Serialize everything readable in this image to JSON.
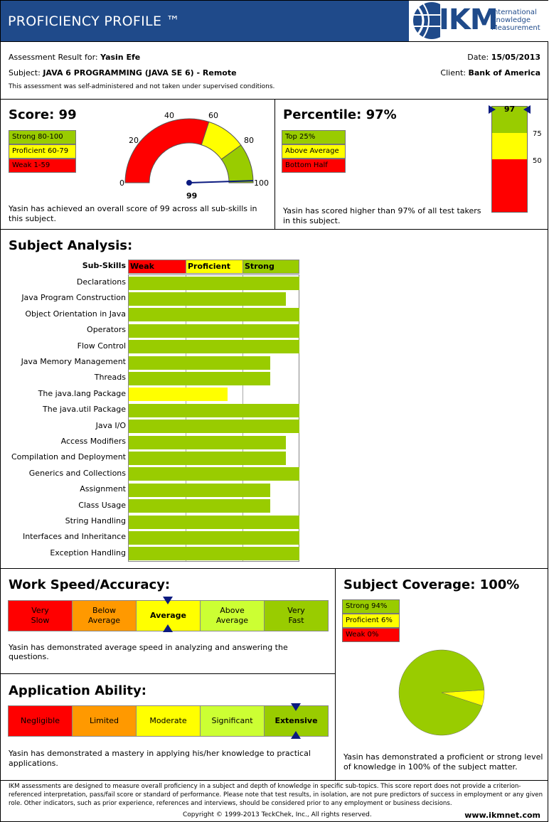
{
  "header": {
    "title": "PROFICIENCY PROFILE ™",
    "logo_text": "IKM",
    "logo_sub1": "International",
    "logo_sub2": "Knowledge",
    "logo_sub3": "Measurement"
  },
  "info": {
    "result_label": "Assessment Result for:",
    "candidate": "Yasin Efe",
    "subject_label": "Subject:",
    "subject": "JAVA 6 PROGRAMMING (JAVA SE 6) - Remote",
    "date_label": "Date:",
    "date": "15/05/2013",
    "client_label": "Client:",
    "client": "Bank of America",
    "note": "This assessment was self-administered and not taken under supervised conditions."
  },
  "score": {
    "title": "Score: 99",
    "value": 99,
    "value_text": "99",
    "legend": [
      "Strong 80-100",
      "Proficient 60-79",
      "Weak 1-59"
    ],
    "ticks": [
      "0",
      "20",
      "40",
      "60",
      "80",
      "100"
    ],
    "desc": "Yasin has achieved an overall score of 99 across all sub-skills in this subject."
  },
  "percentile": {
    "title": "Percentile: 97%",
    "value": 97,
    "value_text": "97",
    "legend": [
      "Top 25%",
      "Above Average",
      "Bottom Half"
    ],
    "ticks": [
      "75",
      "50"
    ],
    "desc": "Yasin has scored higher than 97% of all test takers in this subject."
  },
  "analysis": {
    "title": "Subject Analysis:",
    "col_header": "Sub-Skills",
    "levels": [
      "Weak",
      "Proficient",
      "Strong"
    ],
    "skills": [
      {
        "name": "Declarations",
        "value": 100,
        "color": "#99cc00"
      },
      {
        "name": "Java Program Construction",
        "value": 92,
        "color": "#99cc00"
      },
      {
        "name": "Object Orientation in Java",
        "value": 100,
        "color": "#99cc00"
      },
      {
        "name": "Operators",
        "value": 100,
        "color": "#99cc00"
      },
      {
        "name": "Flow Control",
        "value": 100,
        "color": "#99cc00"
      },
      {
        "name": "Java Memory Management",
        "value": 83,
        "color": "#99cc00"
      },
      {
        "name": "Threads",
        "value": 83,
        "color": "#99cc00"
      },
      {
        "name": "The java.lang Package",
        "value": 58,
        "color": "#ffff00"
      },
      {
        "name": "The java.util Package",
        "value": 100,
        "color": "#99cc00"
      },
      {
        "name": "Java I/O",
        "value": 100,
        "color": "#99cc00"
      },
      {
        "name": "Access Modifiers",
        "value": 92,
        "color": "#99cc00"
      },
      {
        "name": "Compilation and Deployment",
        "value": 92,
        "color": "#99cc00"
      },
      {
        "name": "Generics and Collections",
        "value": 100,
        "color": "#99cc00"
      },
      {
        "name": "Assignment",
        "value": 83,
        "color": "#99cc00"
      },
      {
        "name": "Class Usage",
        "value": 83,
        "color": "#99cc00"
      },
      {
        "name": "String Handling",
        "value": 100,
        "color": "#99cc00"
      },
      {
        "name": "Interfaces and Inheritance",
        "value": 100,
        "color": "#99cc00"
      },
      {
        "name": "Exception Handling",
        "value": 100,
        "color": "#99cc00"
      }
    ]
  },
  "speed": {
    "title": "Work Speed/Accuracy:",
    "scale": [
      "Very\nSlow",
      "Below\nAverage",
      "Average",
      "Above\nAverage",
      "Very\nFast"
    ],
    "selected_index": 2,
    "desc": "Yasin has demonstrated average speed in analyzing and answering the questions."
  },
  "application": {
    "title": "Application Ability:",
    "scale": [
      "Negligible",
      "Limited",
      "Moderate",
      "Significant",
      "Extensive"
    ],
    "selected_index": 4,
    "desc": "Yasin has demonstrated a mastery in applying his/her knowledge to practical applications."
  },
  "coverage": {
    "title": "Subject Coverage: 100%",
    "legend": [
      "Strong 94%",
      "Proficient 6%",
      "Weak 0%"
    ],
    "pie": [
      94,
      6,
      0
    ],
    "desc": "Yasin has demonstrated a proficient or strong level of knowledge in 100% of the subject matter."
  },
  "footer": {
    "disclaimer": "IKM assessments are designed to measure overall proficiency in a subject and depth of knowledge in specific sub-topics. This score report does not provide a criterion-referenced interpretation, pass/fail score or standard of performance. Please note that test results, in isolation, are not pure predictors of success in employment or any given role. Other indicators, such as prior experience, references and interviews, should be considered prior to any employment or business decisions.",
    "copyright": "Copyright © 1999-2013 TeckChek, Inc., All rights reserved.",
    "url": "www.ikmnet.com"
  },
  "colors": {
    "strong": "#99cc00",
    "proficient": "#ffff00",
    "weak": "#ff0000",
    "header": "#1f4a8a",
    "marker": "#0b1a80"
  }
}
